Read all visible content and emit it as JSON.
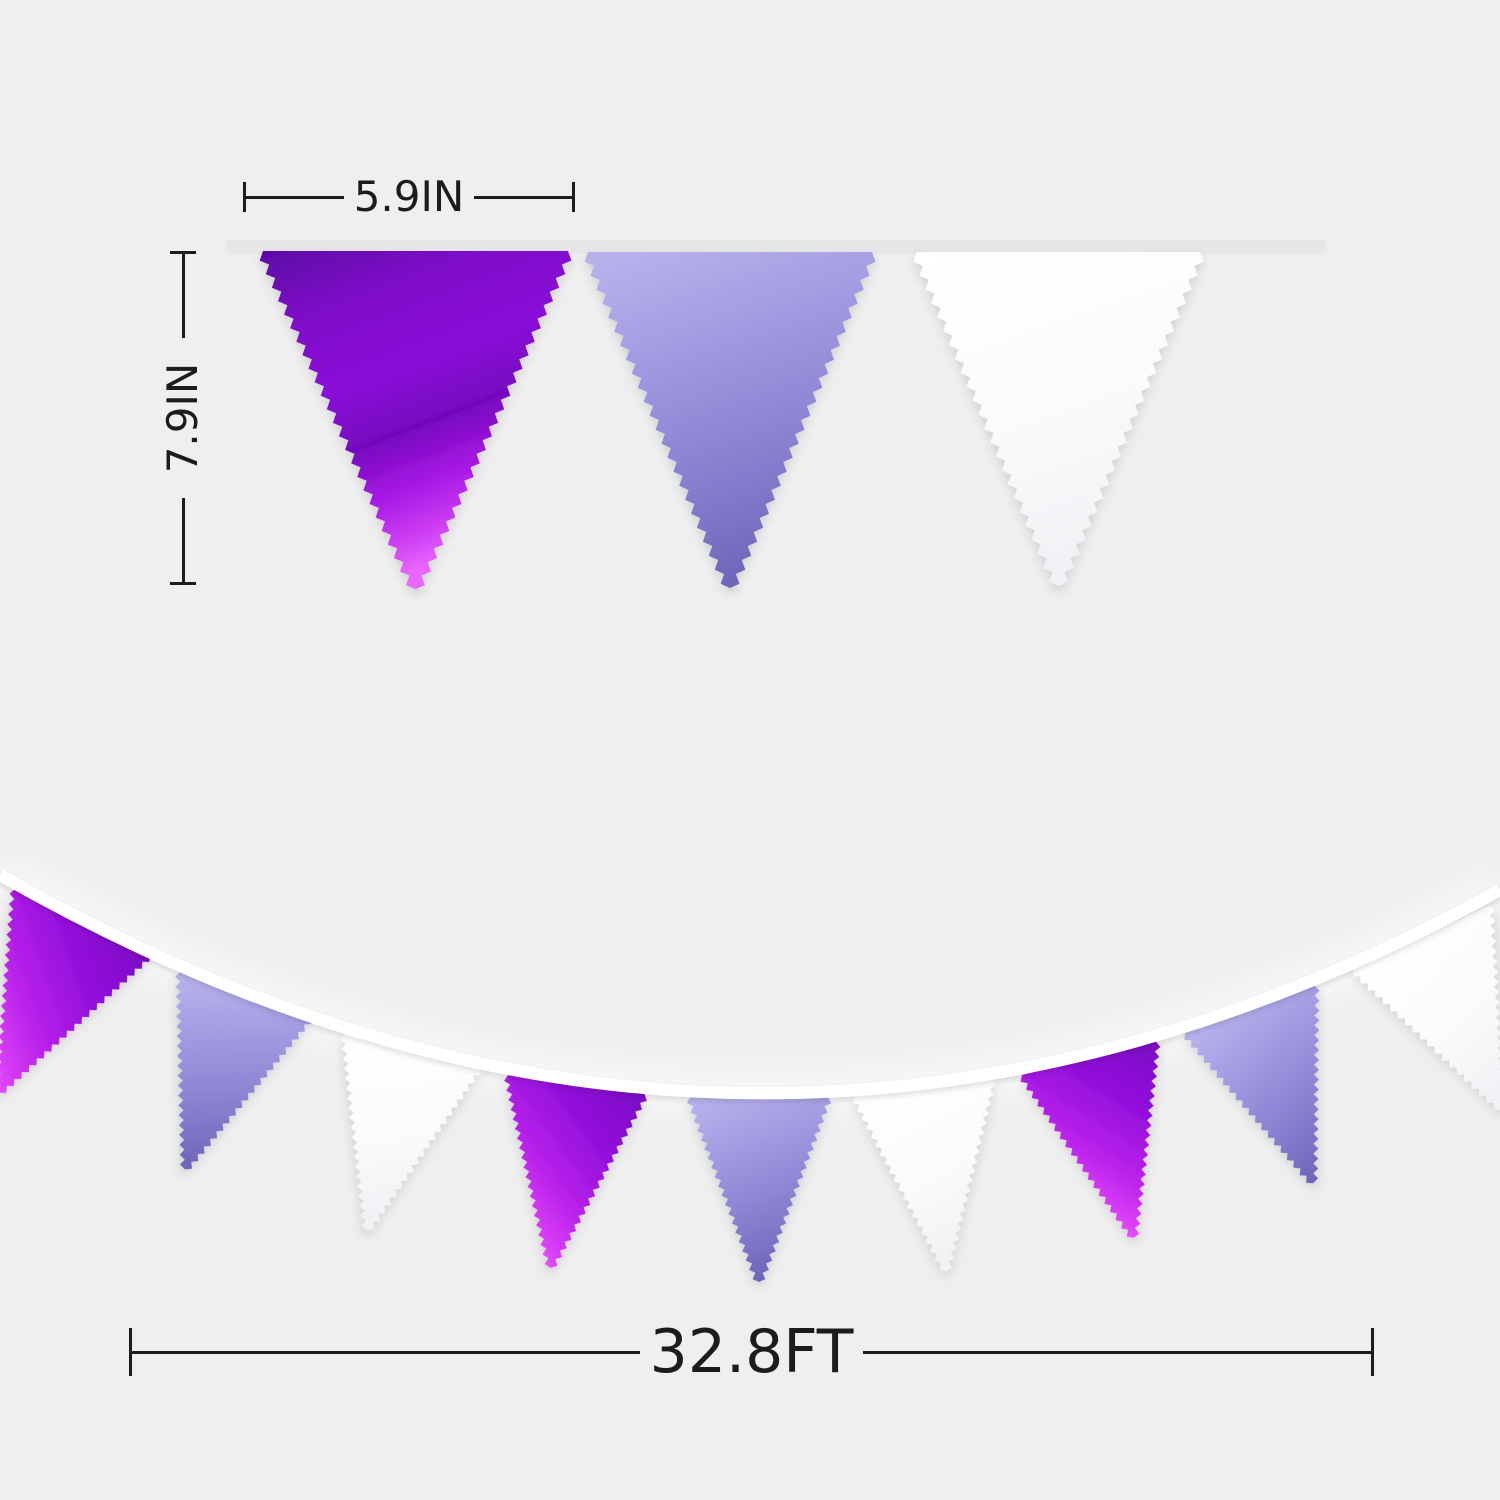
{
  "page": {
    "background": "#EFEFEF",
    "ink": "#1C1C1C"
  },
  "annotations": {
    "flag_width": "5.9IN",
    "flag_height": "7.9IN",
    "banner_length": "32.8FT"
  },
  "banner": {
    "ribbon_color": "#E7E7E9",
    "string_color": "#FFFFFF",
    "top_row_flags": [
      "purple",
      "lavender",
      "white"
    ],
    "bottom_row_flags": [
      "purple-foil",
      "lavender",
      "white",
      "purple-foil",
      "lavender",
      "white",
      "purple-foil",
      "lavender",
      "white"
    ],
    "palette": {
      "purple": [
        [
          "#5C06A6",
          0
        ],
        [
          "#7E0CC8",
          22
        ],
        [
          "#8A10D8",
          45
        ],
        [
          "#7506BE",
          62
        ],
        [
          "#A91AE6",
          78
        ],
        [
          "#CB3CF2",
          90
        ],
        [
          "#E866FF",
          100
        ]
      ],
      "purple-foil": [
        [
          "#7D0AC8",
          0
        ],
        [
          "#9611DD",
          30
        ],
        [
          "#B821EA",
          55
        ],
        [
          "#D93EF6",
          75
        ],
        [
          "#F26DFF",
          90
        ],
        [
          "#FF93F2",
          100
        ]
      ],
      "lavender": [
        [
          "#B7B2EC",
          0
        ],
        [
          "#A29CE2",
          30
        ],
        [
          "#8D86D4",
          60
        ],
        [
          "#7A72C4",
          85
        ],
        [
          "#6E66B8",
          100
        ]
      ],
      "white": [
        [
          "#FFFFFF",
          0
        ],
        [
          "#FAFBFC",
          55
        ],
        [
          "#F1F2F5",
          100
        ]
      ]
    }
  }
}
